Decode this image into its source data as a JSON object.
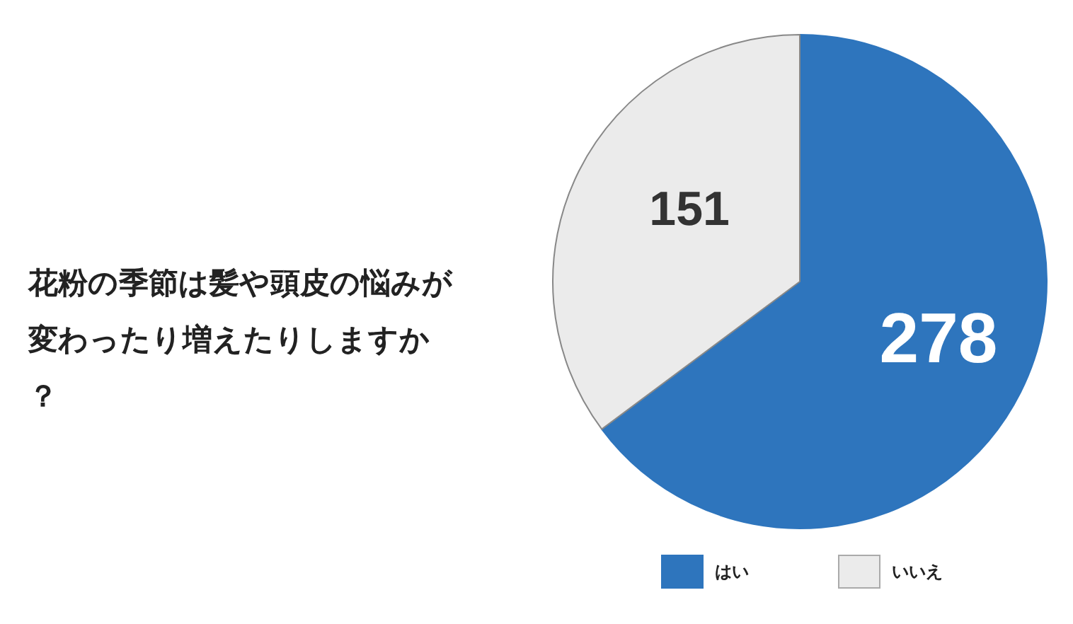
{
  "chart_data": {
    "type": "pie",
    "title": "花粉の季節は髪や頭皮の悩みが変わったり増えたりしますか？",
    "categories": [
      "はい",
      "いいえ"
    ],
    "values": [
      278,
      151
    ],
    "colors": [
      "#2e75bd",
      "#ebebeb"
    ],
    "data_labels": true,
    "legend": "bottom"
  }
}
